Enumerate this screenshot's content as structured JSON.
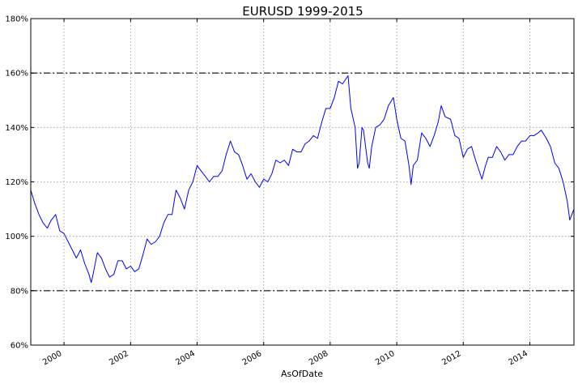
{
  "chart_data": {
    "type": "line",
    "title": "EURUSD 1999-2015",
    "xlabel": "AsOfDate",
    "ylabel": "",
    "x_ticks": [
      "2000",
      "2002",
      "2004",
      "2006",
      "2008",
      "2010",
      "2012",
      "2014"
    ],
    "y_ticks": [
      "60%",
      "80%",
      "100%",
      "120%",
      "140%",
      "160%",
      "180%"
    ],
    "xlim": [
      "1999-01-01",
      "2015-04-30"
    ],
    "ylim": [
      0.6,
      1.8
    ],
    "y_format": "percent",
    "grid": true,
    "reference_lines": [
      {
        "y": 1.6,
        "style": "dash-dot",
        "color": "#333333"
      },
      {
        "y": 0.8,
        "style": "dash-dot",
        "color": "#333333"
      }
    ],
    "series": [
      {
        "color": "#0000ff",
        "x": [
          "1999-01-01",
          "1999-02-15",
          "1999-04-01",
          "1999-05-15",
          "1999-07-01",
          "1999-08-15",
          "1999-10-01",
          "1999-11-15",
          "2000-01-01",
          "2000-02-15",
          "2000-04-01",
          "2000-05-15",
          "2000-07-01",
          "2000-08-15",
          "2000-10-01",
          "2000-10-26",
          "2000-11-15",
          "2001-01-01",
          "2001-02-15",
          "2001-04-01",
          "2001-05-15",
          "2001-07-01",
          "2001-08-15",
          "2001-10-01",
          "2001-11-15",
          "2002-01-01",
          "2002-02-15",
          "2002-04-01",
          "2002-05-15",
          "2002-07-01",
          "2002-08-15",
          "2002-10-01",
          "2002-11-15",
          "2003-01-01",
          "2003-02-15",
          "2003-04-01",
          "2003-05-15",
          "2003-07-01",
          "2003-08-15",
          "2003-10-01",
          "2003-11-15",
          "2004-01-01",
          "2004-02-15",
          "2004-04-01",
          "2004-05-15",
          "2004-07-01",
          "2004-08-15",
          "2004-10-01",
          "2004-11-15",
          "2005-01-01",
          "2005-02-15",
          "2005-04-01",
          "2005-05-15",
          "2005-07-01",
          "2005-08-15",
          "2005-10-01",
          "2005-11-15",
          "2006-01-01",
          "2006-02-15",
          "2006-04-01",
          "2006-05-15",
          "2006-07-01",
          "2006-08-15",
          "2006-10-01",
          "2006-11-15",
          "2007-01-01",
          "2007-02-15",
          "2007-04-01",
          "2007-05-15",
          "2007-07-01",
          "2007-08-15",
          "2007-10-01",
          "2007-11-15",
          "2008-01-01",
          "2008-02-15",
          "2008-04-01",
          "2008-05-15",
          "2008-07-15",
          "2008-08-15",
          "2008-10-01",
          "2008-10-27",
          "2008-11-15",
          "2008-12-15",
          "2009-01-01",
          "2009-02-15",
          "2009-03-05",
          "2009-04-01",
          "2009-05-15",
          "2009-07-01",
          "2009-08-15",
          "2009-10-01",
          "2009-11-25",
          "2010-01-01",
          "2010-02-15",
          "2010-04-01",
          "2010-05-15",
          "2010-06-07",
          "2010-07-01",
          "2010-08-15",
          "2010-10-01",
          "2010-11-15",
          "2011-01-01",
          "2011-02-15",
          "2011-04-01",
          "2011-05-04",
          "2011-06-15",
          "2011-08-15",
          "2011-10-01",
          "2011-11-15",
          "2012-01-01",
          "2012-02-15",
          "2012-04-01",
          "2012-05-15",
          "2012-07-24",
          "2012-09-01",
          "2012-10-01",
          "2012-11-15",
          "2013-01-01",
          "2013-02-15",
          "2013-04-01",
          "2013-05-15",
          "2013-07-01",
          "2013-08-15",
          "2013-10-01",
          "2013-11-15",
          "2014-01-01",
          "2014-02-15",
          "2014-04-01",
          "2014-05-06",
          "2014-07-01",
          "2014-08-15",
          "2014-10-01",
          "2014-11-15",
          "2015-01-01",
          "2015-02-15",
          "2015-03-15",
          "2015-04-30"
        ],
        "y": [
          1.17,
          1.12,
          1.08,
          1.05,
          1.03,
          1.06,
          1.08,
          1.02,
          1.01,
          0.98,
          0.95,
          0.92,
          0.95,
          0.9,
          0.86,
          0.83,
          0.86,
          0.94,
          0.92,
          0.88,
          0.85,
          0.86,
          0.91,
          0.91,
          0.88,
          0.89,
          0.87,
          0.88,
          0.93,
          0.99,
          0.97,
          0.98,
          1.0,
          1.05,
          1.08,
          1.08,
          1.17,
          1.14,
          1.1,
          1.17,
          1.2,
          1.26,
          1.24,
          1.22,
          1.2,
          1.22,
          1.22,
          1.24,
          1.3,
          1.35,
          1.31,
          1.3,
          1.26,
          1.21,
          1.23,
          1.2,
          1.18,
          1.21,
          1.2,
          1.23,
          1.28,
          1.27,
          1.28,
          1.26,
          1.32,
          1.31,
          1.31,
          1.34,
          1.35,
          1.37,
          1.36,
          1.42,
          1.47,
          1.47,
          1.51,
          1.57,
          1.56,
          1.59,
          1.47,
          1.4,
          1.25,
          1.27,
          1.4,
          1.39,
          1.27,
          1.25,
          1.33,
          1.4,
          1.41,
          1.43,
          1.48,
          1.51,
          1.43,
          1.36,
          1.35,
          1.26,
          1.19,
          1.26,
          1.28,
          1.38,
          1.36,
          1.33,
          1.37,
          1.42,
          1.48,
          1.44,
          1.43,
          1.37,
          1.36,
          1.29,
          1.32,
          1.33,
          1.28,
          1.21,
          1.26,
          1.29,
          1.29,
          1.33,
          1.31,
          1.28,
          1.3,
          1.3,
          1.33,
          1.35,
          1.35,
          1.37,
          1.37,
          1.38,
          1.39,
          1.36,
          1.33,
          1.27,
          1.25,
          1.2,
          1.13,
          1.06,
          1.1
        ]
      }
    ]
  }
}
